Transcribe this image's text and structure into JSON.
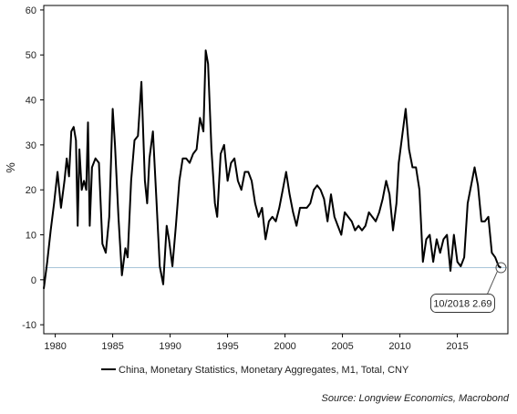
{
  "chart_data": {
    "type": "line",
    "title": "",
    "xlabel": "",
    "ylabel": "%",
    "xlim": [
      1979.0,
      2019.4
    ],
    "ylim": [
      -12,
      61
    ],
    "yticks": [
      -10,
      0,
      10,
      20,
      30,
      40,
      50,
      60
    ],
    "xticks": [
      1980,
      1985,
      1990,
      1995,
      2000,
      2005,
      2010,
      2015
    ],
    "grid": false,
    "legend_position": "bottom",
    "reference_line": {
      "y": 2.69,
      "color": "#a9c6d9"
    },
    "series": [
      {
        "name": "China, Monetary Statistics, Monetary Aggregates, M1, Total, CNY",
        "color": "#000000",
        "x": [
          1979.0,
          1979.3,
          1979.6,
          1979.9,
          1980.2,
          1980.5,
          1980.8,
          1981.0,
          1981.2,
          1981.4,
          1981.6,
          1981.8,
          1981.95,
          1982.1,
          1982.3,
          1982.5,
          1982.7,
          1982.85,
          1983.0,
          1983.2,
          1983.5,
          1983.8,
          1984.1,
          1984.4,
          1984.7,
          1985.0,
          1985.2,
          1985.5,
          1985.8,
          1986.1,
          1986.3,
          1986.6,
          1986.9,
          1987.2,
          1987.5,
          1987.8,
          1988.0,
          1988.2,
          1988.5,
          1988.8,
          1989.1,
          1989.4,
          1989.7,
          1989.9,
          1990.2,
          1990.5,
          1990.8,
          1991.1,
          1991.4,
          1991.7,
          1992.0,
          1992.3,
          1992.6,
          1992.9,
          1993.1,
          1993.3,
          1993.6,
          1993.9,
          1994.1,
          1994.4,
          1994.7,
          1995.0,
          1995.3,
          1995.6,
          1995.9,
          1996.2,
          1996.5,
          1996.8,
          1997.1,
          1997.4,
          1997.7,
          1998.0,
          1998.3,
          1998.6,
          1998.9,
          1999.2,
          1999.5,
          1999.8,
          2000.1,
          2000.4,
          2000.7,
          2001.0,
          2001.3,
          2001.6,
          2001.9,
          2002.2,
          2002.5,
          2002.8,
          2003.1,
          2003.4,
          2003.7,
          2004.0,
          2004.3,
          2004.6,
          2004.9,
          2005.2,
          2005.5,
          2005.8,
          2006.1,
          2006.4,
          2006.7,
          2007.0,
          2007.3,
          2007.6,
          2007.9,
          2008.2,
          2008.5,
          2008.8,
          2009.1,
          2009.4,
          2009.7,
          2009.9,
          2010.2,
          2010.5,
          2010.8,
          2011.1,
          2011.4,
          2011.7,
          2012.0,
          2012.3,
          2012.6,
          2012.9,
          2013.2,
          2013.5,
          2013.8,
          2014.1,
          2014.4,
          2014.7,
          2015.0,
          2015.3,
          2015.6,
          2015.9,
          2016.2,
          2016.5,
          2016.8,
          2017.1,
          2017.4,
          2017.7,
          2018.0,
          2018.3,
          2018.6,
          2018.8
        ],
        "values": [
          -2,
          4,
          11,
          17,
          24,
          16,
          22,
          27,
          23,
          33,
          34,
          31,
          12,
          29,
          20,
          22,
          20,
          35,
          12,
          25,
          27,
          26,
          8,
          6,
          14,
          38,
          30,
          14,
          1,
          7,
          5,
          22,
          31,
          32,
          44,
          22,
          17,
          27,
          33,
          18,
          3,
          -1,
          12,
          9,
          3,
          12,
          22,
          27,
          27,
          26,
          28,
          29,
          36,
          33,
          51,
          48,
          29,
          17,
          14,
          28,
          30,
          22,
          26,
          27,
          22,
          20,
          24,
          24,
          22,
          17,
          14,
          16,
          9,
          13,
          14,
          13,
          16,
          20,
          24,
          19,
          15,
          12,
          16,
          16,
          16,
          17,
          20,
          21,
          20,
          18,
          13,
          19,
          14,
          12,
          10,
          15,
          14,
          13,
          11,
          12,
          11,
          12,
          15,
          14,
          13,
          15,
          18,
          22,
          19,
          11,
          17,
          26,
          32,
          38,
          29,
          25,
          25,
          20,
          4,
          9,
          10,
          4,
          9,
          6,
          9,
          10,
          2,
          10,
          4,
          3,
          5,
          17,
          21,
          25,
          21,
          13,
          13,
          14,
          6,
          5,
          3,
          2.69
        ]
      }
    ],
    "annotation": {
      "text": "10/2018 2.69",
      "x": 2018.8,
      "y": 2.69
    },
    "legend": [
      "China, Monetary Statistics, Monetary Aggregates, M1, Total, CNY"
    ],
    "source": "Source: Longview Economics, Macrobond"
  }
}
